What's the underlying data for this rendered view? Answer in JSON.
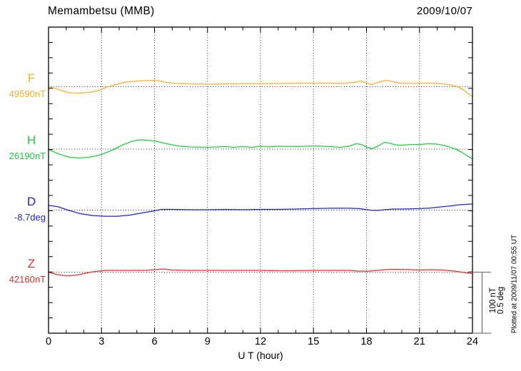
{
  "header": {
    "title": "Memambetsu (MMB)",
    "date": "2009/10/07"
  },
  "x_axis": {
    "label": "U T (hour)",
    "ticks": [
      0,
      3,
      6,
      9,
      12,
      15,
      18,
      21,
      24
    ],
    "range": [
      0,
      24
    ]
  },
  "scale_bar": {
    "label_nt": "100 nT",
    "label_deg": "0.5 deg"
  },
  "footer_note": "Plotted at 2009/11/07 00:55 UT",
  "colors": {
    "background": "#ffffff",
    "frame": "#000000",
    "grid": "#2a2a2a",
    "scale_bar": "#787878",
    "F": "#FFAE2E",
    "H": "#22CC44",
    "D": "#2222CC",
    "Z": "#E03030"
  },
  "chart_data": {
    "type": "line",
    "title": "Memambetsu (MMB)",
    "date": "2009/10/07",
    "xlabel": "U T (hour)",
    "x_range": [
      0,
      24
    ],
    "x_ticks": [
      0,
      3,
      6,
      9,
      12,
      15,
      18,
      21,
      24
    ],
    "grid": "dotted vertical lines every 3 hours; dotted horizontal line at each trace baseline",
    "legend_position": "left of each trace baseline",
    "scale_per_division": {
      "nT": 100,
      "deg": 0.5
    },
    "value_meaning": "offset from baseline_value, in series unit",
    "series": [
      {
        "name": "F",
        "baseline_label": "49590nT",
        "baseline_value": 49590,
        "unit": "nT",
        "color": "#FFAE2E",
        "points": [
          [
            0,
            0
          ],
          [
            0.4,
            -3
          ],
          [
            0.7,
            -6.4
          ],
          [
            1.2,
            -9.9
          ],
          [
            1.7,
            -10.5
          ],
          [
            2.3,
            -9.3
          ],
          [
            2.9,
            -5.8
          ],
          [
            3.3,
            -0.6
          ],
          [
            3.8,
            3.5
          ],
          [
            4.4,
            7.6
          ],
          [
            5.1,
            9.3
          ],
          [
            5.9,
            10.5
          ],
          [
            6.3,
            9.3
          ],
          [
            6.7,
            7
          ],
          [
            7.3,
            5.2
          ],
          [
            7.8,
            4.7
          ],
          [
            9,
            4.1
          ],
          [
            10,
            4.4
          ],
          [
            11,
            4.7
          ],
          [
            12,
            4.7
          ],
          [
            13.4,
            5.2
          ],
          [
            14.6,
            5.8
          ],
          [
            15.8,
            5.8
          ],
          [
            16.6,
            5.2
          ],
          [
            17.3,
            7
          ],
          [
            17.7,
            9.3
          ],
          [
            18,
            5.8
          ],
          [
            18.3,
            3.5
          ],
          [
            18.7,
            7.6
          ],
          [
            19.1,
            10.5
          ],
          [
            19.4,
            8.7
          ],
          [
            19.9,
            5.8
          ],
          [
            20.7,
            5.2
          ],
          [
            21.5,
            5.8
          ],
          [
            22.1,
            5.2
          ],
          [
            22.6,
            3.5
          ],
          [
            23.1,
            0.6
          ],
          [
            23.5,
            -5.2
          ],
          [
            23.8,
            -12.2
          ],
          [
            24,
            -15.7
          ]
        ]
      },
      {
        "name": "H",
        "baseline_label": "26190nT",
        "baseline_value": 26190,
        "unit": "nT",
        "color": "#22CC44",
        "points": [
          [
            0,
            -0.6
          ],
          [
            0.6,
            -8.2
          ],
          [
            1.2,
            -13.4
          ],
          [
            1.8,
            -14.6
          ],
          [
            2.4,
            -12.8
          ],
          [
            3,
            -8.7
          ],
          [
            3.6,
            -1.7
          ],
          [
            4.2,
            7
          ],
          [
            4.8,
            13.4
          ],
          [
            5.2,
            15.2
          ],
          [
            5.6,
            14.6
          ],
          [
            6.1,
            12.8
          ],
          [
            6.7,
            8.7
          ],
          [
            7.3,
            5.2
          ],
          [
            8,
            3.5
          ],
          [
            9,
            2.9
          ],
          [
            10,
            4.1
          ],
          [
            10.5,
            2.9
          ],
          [
            11,
            4.1
          ],
          [
            11.5,
            2.9
          ],
          [
            12,
            4.7
          ],
          [
            12.5,
            3.5
          ],
          [
            13,
            4.7
          ],
          [
            14,
            4.1
          ],
          [
            15,
            5.2
          ],
          [
            15.5,
            4.7
          ],
          [
            16,
            4.1
          ],
          [
            16.5,
            2.9
          ],
          [
            17,
            4.7
          ],
          [
            17.4,
            8.7
          ],
          [
            17.7,
            7.6
          ],
          [
            18,
            3.5
          ],
          [
            18.3,
            0.6
          ],
          [
            18.6,
            4.1
          ],
          [
            19,
            11.1
          ],
          [
            19.3,
            9.9
          ],
          [
            19.6,
            7
          ],
          [
            20,
            6.4
          ],
          [
            20.5,
            7.6
          ],
          [
            21,
            7.6
          ],
          [
            21.5,
            8.7
          ],
          [
            22,
            8.2
          ],
          [
            22.5,
            5.2
          ],
          [
            23,
            0.6
          ],
          [
            23.4,
            -5.2
          ],
          [
            23.7,
            -11.1
          ],
          [
            24,
            -15.7
          ]
        ]
      },
      {
        "name": "D",
        "baseline_label": "-8.7deg",
        "baseline_value": -8.7,
        "unit": "deg",
        "color": "#2222CC",
        "points": [
          [
            0,
            0.038
          ],
          [
            0.5,
            0.029
          ],
          [
            1.1,
            0
          ],
          [
            1.8,
            -0.029
          ],
          [
            2.5,
            -0.044
          ],
          [
            3.2,
            -0.05
          ],
          [
            3.9,
            -0.05
          ],
          [
            4.6,
            -0.041
          ],
          [
            5.3,
            -0.023
          ],
          [
            6,
            -0.006
          ],
          [
            6.4,
            0.006
          ],
          [
            7,
            0.006
          ],
          [
            8,
            0.003
          ],
          [
            9,
            0.003
          ],
          [
            10,
            0.006
          ],
          [
            11,
            0.003
          ],
          [
            12,
            0.006
          ],
          [
            13,
            0.006
          ],
          [
            14,
            0.009
          ],
          [
            15,
            0.012
          ],
          [
            16,
            0.015
          ],
          [
            17,
            0.015
          ],
          [
            17.6,
            0.012
          ],
          [
            18.2,
            0
          ],
          [
            18.6,
            -0.003
          ],
          [
            19,
            0.003
          ],
          [
            19.5,
            0.009
          ],
          [
            20,
            0.009
          ],
          [
            21,
            0.012
          ],
          [
            21.6,
            0.017
          ],
          [
            22.2,
            0.026
          ],
          [
            22.8,
            0.035
          ],
          [
            23.3,
            0.044
          ],
          [
            23.7,
            0.047
          ],
          [
            24,
            0.05
          ]
        ]
      },
      {
        "name": "Z",
        "baseline_label": "42160nT",
        "baseline_value": 42160,
        "unit": "nT",
        "color": "#E03030",
        "points": [
          [
            0,
            0
          ],
          [
            0.5,
            -4.1
          ],
          [
            1,
            -5.8
          ],
          [
            1.5,
            -5.2
          ],
          [
            2,
            -2.3
          ],
          [
            2.5,
            0.6
          ],
          [
            3,
            2.3
          ],
          [
            3.5,
            2.9
          ],
          [
            4.5,
            2.9
          ],
          [
            5.5,
            2.9
          ],
          [
            6,
            4.1
          ],
          [
            6.5,
            5.2
          ],
          [
            7,
            3.5
          ],
          [
            8,
            2.9
          ],
          [
            9,
            2.9
          ],
          [
            10,
            2.9
          ],
          [
            11,
            2.9
          ],
          [
            12,
            2.9
          ],
          [
            13,
            2.3
          ],
          [
            14,
            2.3
          ],
          [
            15,
            2.9
          ],
          [
            16,
            2.9
          ],
          [
            17,
            2.9
          ],
          [
            17.5,
            1.7
          ],
          [
            18.2,
            1.7
          ],
          [
            19,
            4.1
          ],
          [
            19.5,
            4.7
          ],
          [
            20.5,
            4.1
          ],
          [
            21,
            3.5
          ],
          [
            21.7,
            4.1
          ],
          [
            22.3,
            3.5
          ],
          [
            23,
            1.7
          ],
          [
            23.4,
            0
          ],
          [
            23.8,
            -1.7
          ],
          [
            24,
            -2.3
          ]
        ]
      }
    ]
  }
}
